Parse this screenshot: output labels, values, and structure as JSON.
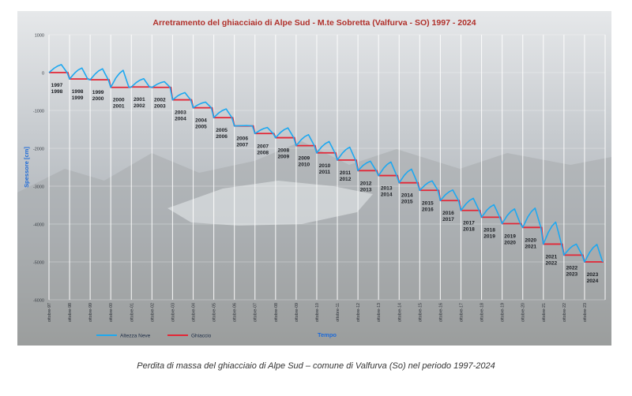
{
  "colors": {
    "neve": "#1ea8f0",
    "ghiaccio": "#e32636",
    "title": "#b0302a",
    "axis_label": "#1e6bd8",
    "background_sky": "#c9cccf",
    "background_ground": "#8e908e",
    "grid": "#ffffff"
  },
  "caption": "Perdita di massa del ghiacciaio di Alpe Sud – comune di Valfurva (So) nel periodo 1997-2024",
  "chart_data": {
    "type": "line",
    "title": "Arretramento del ghiacciaio di Alpe Sud - M.te Sobretta (Valfurva - SO)  1997 - 2024",
    "xlabel": "Tempo",
    "ylabel": "Spessore [cm]",
    "ylim": [
      -6000,
      1000
    ],
    "yticks": [
      1000,
      0,
      -1000,
      -2000,
      -3000,
      -4000,
      -5000,
      -6000
    ],
    "xticks": [
      "ottobre-97",
      "ottobre-98",
      "ottobre-99",
      "ottobre-00",
      "ottobre-01",
      "ottobre-02",
      "ottobre-03",
      "ottobre-04",
      "ottobre-05",
      "ottobre-06",
      "ottobre-07",
      "ottobre-08",
      "ottobre-09",
      "ottobre-10",
      "ottobre-11",
      "ottobre-12",
      "ottobre-13",
      "ottobre-14",
      "ottobre-15",
      "ottobre-16",
      "ottobre-17",
      "ottobre-18",
      "ottobre-19",
      "ottobre-20",
      "ottobre-21",
      "ottobre-22",
      "ottobre-23"
    ],
    "legend": [
      "Altezza Neve",
      "Ghiaccio"
    ],
    "legend_position": "bottom",
    "grid": true,
    "ghiaccio": [
      0,
      -170,
      -190,
      -390,
      -380,
      -390,
      -720,
      -930,
      -1190,
      -1410,
      -1610,
      -1720,
      -1930,
      -2120,
      -2310,
      -2590,
      -2720,
      -2910,
      -3110,
      -3380,
      -3640,
      -3820,
      -3990,
      -4090,
      -4530,
      -4820,
      -5000
    ],
    "neve_peaks": [
      210,
      120,
      100,
      60,
      -160,
      -240,
      -530,
      -780,
      -960,
      -1400,
      -1450,
      -1460,
      -1640,
      -1820,
      -1970,
      -2340,
      -2360,
      -2550,
      -2860,
      -3100,
      -3320,
      -3490,
      -3600,
      -3580,
      -3950,
      -4530,
      -4540
    ],
    "period_labels": [
      {
        "a": "1997",
        "b": "1998"
      },
      {
        "a": "1998",
        "b": "1999"
      },
      {
        "a": "1999",
        "b": "2000"
      },
      {
        "a": "2000",
        "b": "2001"
      },
      {
        "a": "2001",
        "b": "2002"
      },
      {
        "a": "2002",
        "b": "2003"
      },
      {
        "a": "2003",
        "b": "2004"
      },
      {
        "a": "2004",
        "b": "2005"
      },
      {
        "a": "2005",
        "b": "2006"
      },
      {
        "a": "2006",
        "b": "2007"
      },
      {
        "a": "2007",
        "b": "2008"
      },
      {
        "a": "2008",
        "b": "2009"
      },
      {
        "a": "2009",
        "b": "2010"
      },
      {
        "a": "2010",
        "b": "2011"
      },
      {
        "a": "2011",
        "b": "2012"
      },
      {
        "a": "2012",
        "b": "2013"
      },
      {
        "a": "2013",
        "b": "2014"
      },
      {
        "a": "2014",
        "b": "2015"
      },
      {
        "a": "2015",
        "b": "2016"
      },
      {
        "a": "2016",
        "b": "2017"
      },
      {
        "a": "2017",
        "b": "2018"
      },
      {
        "a": "2018",
        "b": "2019"
      },
      {
        "a": "2019",
        "b": "2020"
      },
      {
        "a": "2020",
        "b": "2021"
      },
      {
        "a": "2021",
        "b": "2022"
      },
      {
        "a": "2022",
        "b": "2023"
      },
      {
        "a": "2023",
        "b": "2024"
      }
    ]
  }
}
